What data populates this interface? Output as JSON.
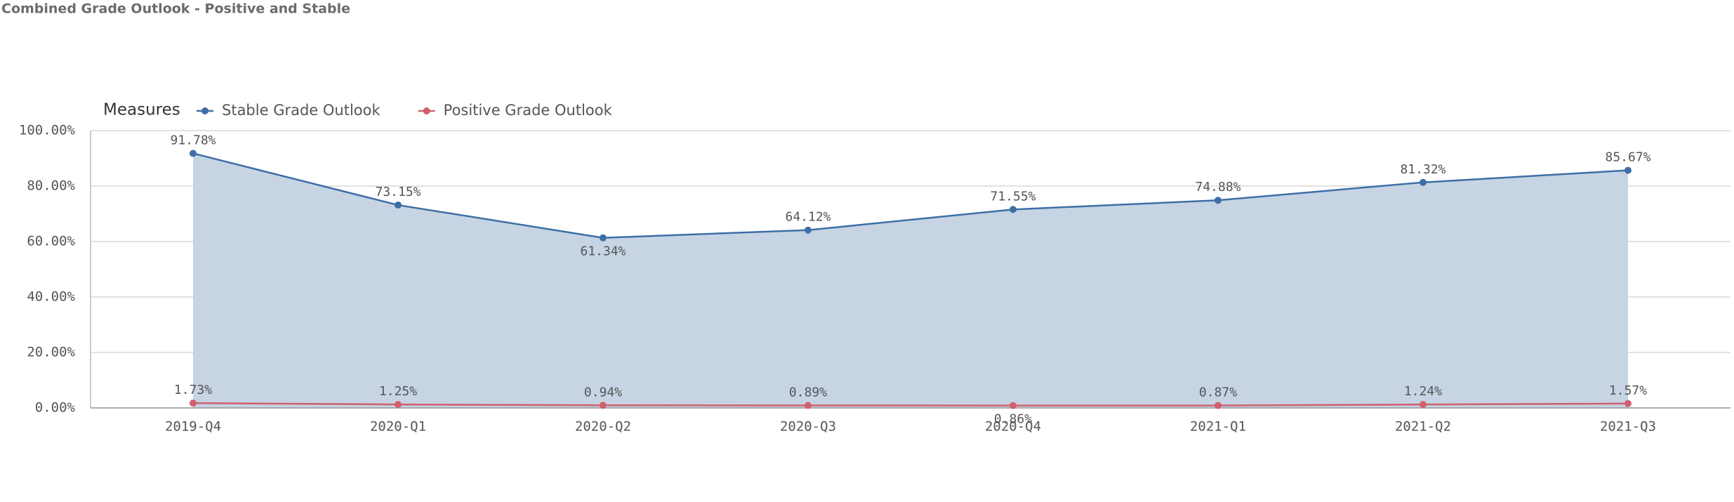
{
  "chart_data": {
    "type": "line",
    "title": "Combined Grade Outlook - Positive and Stable",
    "legend_title": "Measures",
    "legend_position": "top-left",
    "grid": true,
    "categories": [
      "2019-Q4",
      "2020-Q1",
      "2020-Q2",
      "2020-Q3",
      "2020-Q4",
      "2021-Q1",
      "2021-Q2",
      "2021-Q3"
    ],
    "ylim": [
      0,
      100
    ],
    "yticks": [
      {
        "value": 0,
        "label": "0.00%"
      },
      {
        "value": 20,
        "label": "20.00%"
      },
      {
        "value": 40,
        "label": "40.00%"
      },
      {
        "value": 60,
        "label": "60.00%"
      },
      {
        "value": 80,
        "label": "80.00%"
      },
      {
        "value": 100,
        "label": "100.00%"
      }
    ],
    "series": [
      {
        "name": "Stable Grade Outlook",
        "color": "#3d6fa6",
        "area": true,
        "area_color": "#c6d4e4",
        "values": [
          91.78,
          73.15,
          61.34,
          64.12,
          71.55,
          74.88,
          81.32,
          85.67
        ],
        "value_labels": [
          "91.78%",
          "73.15%",
          "61.34%",
          "64.12%",
          "71.55%",
          "74.88%",
          "81.32%",
          "85.67%"
        ]
      },
      {
        "name": "Positive Grade Outlook",
        "color": "#d0606e",
        "area": false,
        "area_color": "#f2d3d7",
        "values": [
          1.73,
          1.25,
          0.94,
          0.89,
          0.86,
          0.87,
          1.24,
          1.57
        ],
        "value_labels": [
          "1.73%",
          "1.25%",
          "0.94%",
          "0.89%",
          "0.86%",
          "0.87%",
          "1.24%",
          "1.57%"
        ]
      }
    ]
  }
}
